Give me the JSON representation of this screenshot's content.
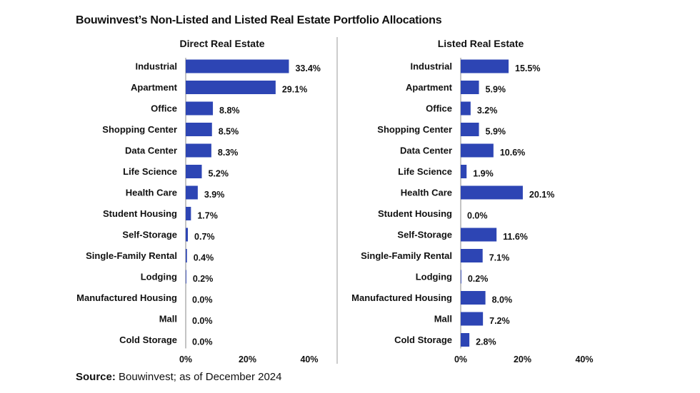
{
  "title": "Bouwinvest’s Non-Listed and Listed Real Estate Portfolio Allocations",
  "source": {
    "label": "Source:",
    "text": "Bouwinvest; as of December 2024"
  },
  "colors": {
    "bar": "#2d45b4",
    "divider": "#9a9a9a",
    "axis": "#8a8a8a"
  },
  "chart_data": [
    {
      "type": "bar",
      "orientation": "horizontal",
      "title": "Direct Real Estate",
      "categories": [
        "Industrial",
        "Apartment",
        "Office",
        "Shopping Center",
        "Data Center",
        "Life Science",
        "Health Care",
        "Student Housing",
        "Self-Storage",
        "Single-Family Rental",
        "Lodging",
        "Manufactured Housing",
        "Mall",
        "Cold Storage"
      ],
      "values": [
        33.4,
        29.1,
        8.8,
        8.5,
        8.3,
        5.2,
        3.9,
        1.7,
        0.7,
        0.4,
        0.2,
        0.0,
        0.0,
        0.0
      ],
      "value_labels": [
        "33.4%",
        "29.1%",
        "8.8%",
        "8.5%",
        "8.3%",
        "5.2%",
        "3.9%",
        "1.7%",
        "0.7%",
        "0.4%",
        "0.2%",
        "0.0%",
        "0.0%",
        "0.0%"
      ],
      "xlim": [
        0,
        40
      ],
      "xticks": [
        "0%",
        "20%",
        "40%"
      ],
      "unit": "%"
    },
    {
      "type": "bar",
      "orientation": "horizontal",
      "title": "Listed Real Estate",
      "categories": [
        "Industrial",
        "Apartment",
        "Office",
        "Shopping Center",
        "Data Center",
        "Life Science",
        "Health Care",
        "Student Housing",
        "Self-Storage",
        "Single-Family Rental",
        "Lodging",
        "Manufactured Housing",
        "Mall",
        "Cold Storage"
      ],
      "values": [
        15.5,
        5.9,
        3.2,
        5.9,
        10.6,
        1.9,
        20.1,
        0.0,
        11.6,
        7.1,
        0.2,
        8.0,
        7.2,
        2.8
      ],
      "value_labels": [
        "15.5%",
        "5.9%",
        "3.2%",
        "5.9%",
        "10.6%",
        "1.9%",
        "20.1%",
        "0.0%",
        "11.6%",
        "7.1%",
        "0.2%",
        "8.0%",
        "7.2%",
        "2.8%"
      ],
      "xlim": [
        0,
        40
      ],
      "xticks": [
        "0%",
        "20%",
        "40%"
      ],
      "unit": "%"
    }
  ]
}
